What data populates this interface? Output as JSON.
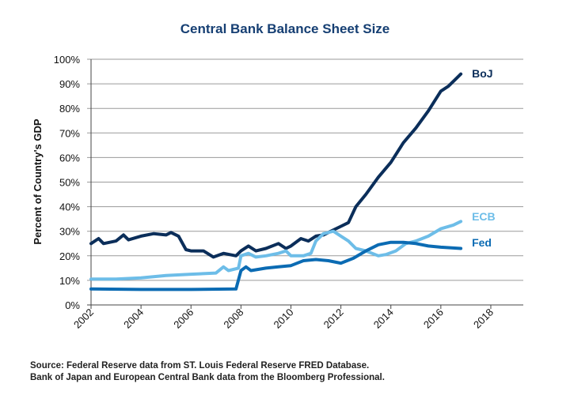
{
  "chart_data": {
    "type": "line",
    "title": "Central Bank Balance Sheet Size",
    "xlabel": "",
    "ylabel": "Percent of Country's GDP",
    "xlim": [
      2002,
      2019.3
    ],
    "ylim": [
      0,
      100
    ],
    "x_ticks": [
      "2002",
      "2004",
      "2006",
      "2008",
      "2010",
      "2012",
      "2014",
      "2016",
      "2018"
    ],
    "y_ticks": [
      "0%",
      "10%",
      "20%",
      "30%",
      "40%",
      "50%",
      "60%",
      "70%",
      "80%",
      "90%",
      "100%"
    ],
    "grid": true,
    "series": [
      {
        "name": "BoJ",
        "color": "#0b2e5a",
        "points": [
          [
            2002,
            25
          ],
          [
            2002.3,
            27
          ],
          [
            2002.5,
            25
          ],
          [
            2003,
            26
          ],
          [
            2003.3,
            28.5
          ],
          [
            2003.5,
            26.5
          ],
          [
            2004,
            28
          ],
          [
            2004.5,
            29
          ],
          [
            2005,
            28.5
          ],
          [
            2005.2,
            29.5
          ],
          [
            2005.5,
            28
          ],
          [
            2005.8,
            22.5
          ],
          [
            2006,
            22
          ],
          [
            2006.5,
            22
          ],
          [
            2006.9,
            19.5
          ],
          [
            2007.3,
            21
          ],
          [
            2007.8,
            20
          ],
          [
            2008,
            22
          ],
          [
            2008.3,
            24
          ],
          [
            2008.6,
            22
          ],
          [
            2009,
            23
          ],
          [
            2009.5,
            25
          ],
          [
            2009.8,
            23
          ],
          [
            2010,
            24
          ],
          [
            2010.4,
            27
          ],
          [
            2010.7,
            26
          ],
          [
            2011,
            28
          ],
          [
            2011.3,
            28.5
          ],
          [
            2011.6,
            30
          ],
          [
            2012,
            32
          ],
          [
            2012.3,
            33.5
          ],
          [
            2012.6,
            40
          ],
          [
            2013,
            45
          ],
          [
            2013.5,
            52
          ],
          [
            2014,
            58
          ],
          [
            2014.5,
            66
          ],
          [
            2015,
            72
          ],
          [
            2015.5,
            79
          ],
          [
            2016,
            87
          ],
          [
            2016.3,
            89
          ],
          [
            2016.6,
            92
          ],
          [
            2016.8,
            94
          ]
        ]
      },
      {
        "name": "ECB",
        "color": "#6dbde8",
        "points": [
          [
            2002,
            10.5
          ],
          [
            2003,
            10.5
          ],
          [
            2004,
            11
          ],
          [
            2005,
            12
          ],
          [
            2006,
            12.5
          ],
          [
            2007,
            13
          ],
          [
            2007.3,
            15.5
          ],
          [
            2007.5,
            14
          ],
          [
            2007.9,
            15
          ],
          [
            2008,
            20
          ],
          [
            2008.3,
            21
          ],
          [
            2008.6,
            19.5
          ],
          [
            2009,
            20
          ],
          [
            2009.5,
            21
          ],
          [
            2009.8,
            22
          ],
          [
            2010,
            20
          ],
          [
            2010.5,
            20
          ],
          [
            2010.8,
            21
          ],
          [
            2011,
            26
          ],
          [
            2011.3,
            29
          ],
          [
            2011.7,
            30
          ],
          [
            2012,
            28
          ],
          [
            2012.3,
            26
          ],
          [
            2012.6,
            23
          ],
          [
            2013,
            22
          ],
          [
            2013.5,
            20
          ],
          [
            2013.8,
            20.5
          ],
          [
            2014.2,
            22
          ],
          [
            2014.6,
            25
          ],
          [
            2015,
            26
          ],
          [
            2015.5,
            28
          ],
          [
            2016,
            31
          ],
          [
            2016.5,
            32.5
          ],
          [
            2016.8,
            34
          ]
        ]
      },
      {
        "name": "Fed",
        "color": "#0b6bb3",
        "points": [
          [
            2002,
            6.5
          ],
          [
            2004,
            6.3
          ],
          [
            2006,
            6.3
          ],
          [
            2007.8,
            6.5
          ],
          [
            2008,
            14
          ],
          [
            2008.2,
            15.5
          ],
          [
            2008.4,
            14
          ],
          [
            2009,
            15
          ],
          [
            2009.5,
            15.5
          ],
          [
            2010,
            16
          ],
          [
            2010.5,
            18
          ],
          [
            2011,
            18.5
          ],
          [
            2011.5,
            18
          ],
          [
            2012,
            17
          ],
          [
            2012.5,
            19
          ],
          [
            2013,
            22
          ],
          [
            2013.5,
            24.5
          ],
          [
            2014,
            25.5
          ],
          [
            2014.5,
            25.5
          ],
          [
            2015,
            25
          ],
          [
            2015.5,
            24
          ],
          [
            2016,
            23.5
          ],
          [
            2016.8,
            23
          ]
        ]
      }
    ],
    "legend": "inline-right-of-lines"
  },
  "source": {
    "line1": "Source:  Federal Reserve data from ST. Louis Federal Reserve FRED Database.",
    "line2": "Bank of Japan and European Central Bank data from the Bloomberg Professional."
  }
}
